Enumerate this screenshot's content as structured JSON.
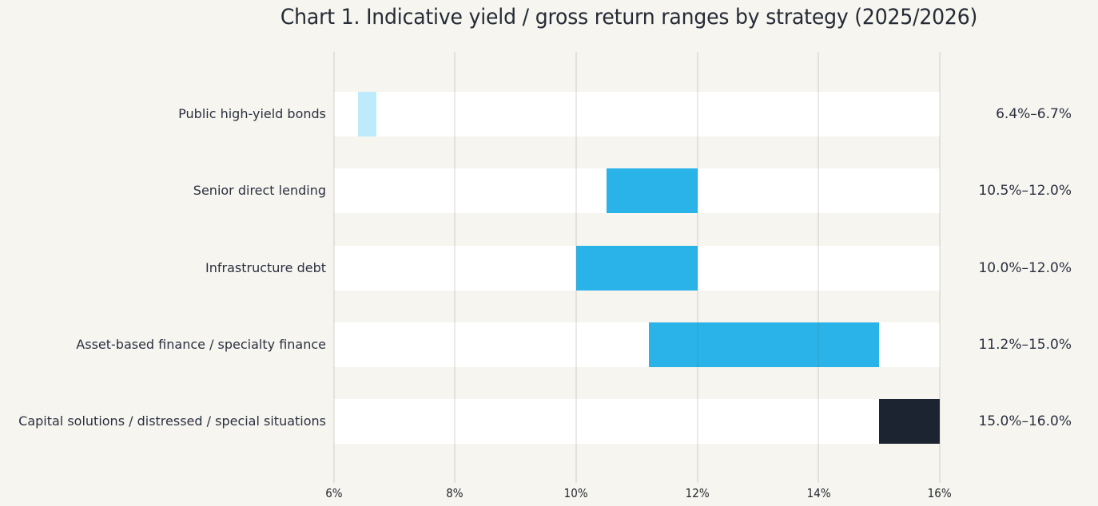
{
  "chart_data": {
    "type": "bar",
    "orientation": "horizontal_range",
    "title": "Chart 1. Indicative yield / gross return ranges by strategy (2025/2026)",
    "categories": [
      "Public high-yield bonds",
      "Senior direct lending",
      "Infrastructure debt",
      "Asset-based finance / specialty finance",
      "Capital solutions / distressed / special situations"
    ],
    "series": [
      {
        "name": "Public high-yield bonds",
        "low": 6.4,
        "high": 6.7,
        "label": "6.4%–6.7%",
        "style": "light"
      },
      {
        "name": "Senior direct lending",
        "low": 10.5,
        "high": 12.0,
        "label": "10.5%–12.0%",
        "style": "primary"
      },
      {
        "name": "Infrastructure debt",
        "low": 10.0,
        "high": 12.0,
        "label": "10.0%–12.0%",
        "style": "primary"
      },
      {
        "name": "Asset-based finance / specialty finance",
        "low": 11.2,
        "high": 15.0,
        "label": "11.2%–15.0%",
        "style": "primary"
      },
      {
        "name": "Capital solutions / distressed / special situations",
        "low": 15.0,
        "high": 16.0,
        "label": "15.0%–16.0%",
        "style": "dark"
      }
    ],
    "xlabel": "",
    "ylabel": "",
    "x_axis": {
      "min": 6,
      "max": 16,
      "ticks": [
        6,
        8,
        10,
        12,
        14,
        16
      ],
      "tick_labels": [
        "6%",
        "8%",
        "10%",
        "12%",
        "14%",
        "16%"
      ]
    },
    "grid": "vertical",
    "legend": "none",
    "colors": {
      "light": "#bdebfb",
      "primary": "#29b3e8",
      "dark": "#1b2430",
      "background": "#f6f5ef",
      "row_band": "#ffffff",
      "text": "#2a3040"
    }
  }
}
